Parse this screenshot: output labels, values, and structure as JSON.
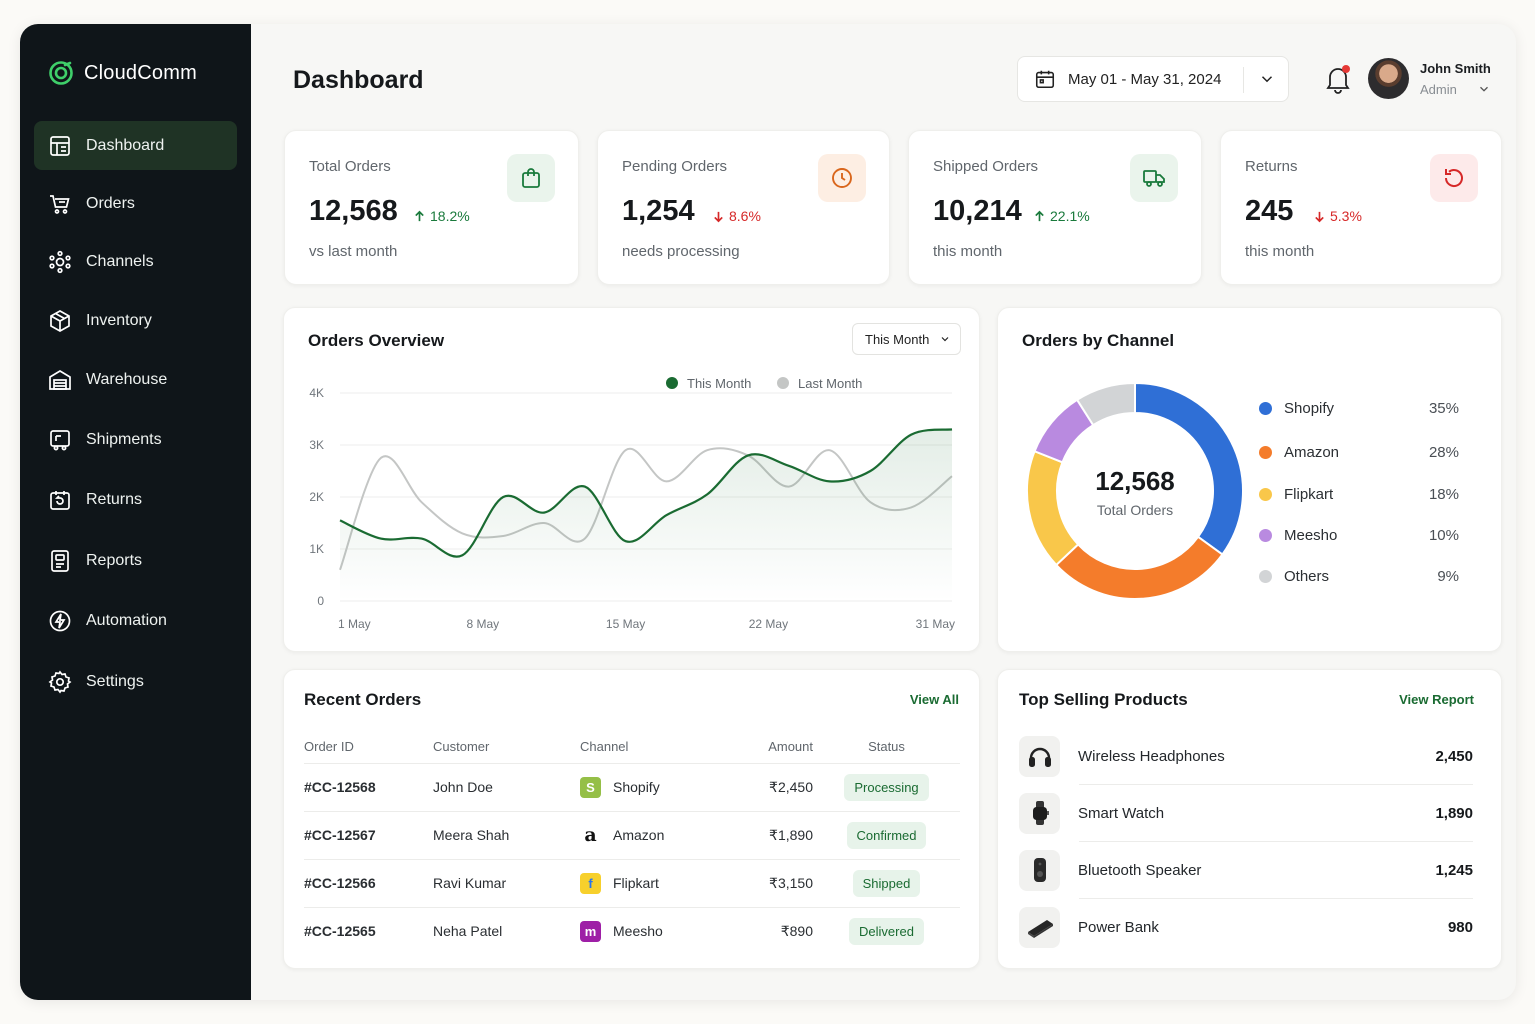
{
  "app": {
    "name": "CloudComm",
    "accent": "#1a6b32"
  },
  "sidebar": {
    "items": [
      {
        "label": "Dashboard",
        "icon": "dashboard-icon",
        "active": true
      },
      {
        "label": "Orders",
        "icon": "cart-icon"
      },
      {
        "label": "Channels",
        "icon": "channels-icon"
      },
      {
        "label": "Inventory",
        "icon": "box-icon"
      },
      {
        "label": "Warehouse",
        "icon": "warehouse-icon"
      },
      {
        "label": "Shipments",
        "icon": "shipment-icon"
      },
      {
        "label": "Returns",
        "icon": "returns-icon"
      },
      {
        "label": "Reports",
        "icon": "reports-icon"
      },
      {
        "label": "Automation",
        "icon": "automation-icon"
      },
      {
        "label": "Settings",
        "icon": "gear-icon"
      }
    ]
  },
  "header": {
    "title": "Dashboard",
    "date_range": "May 01 - May 31, 2024",
    "user": {
      "name": "John Smith",
      "role": "Admin"
    }
  },
  "stats": [
    {
      "label": "Total Orders",
      "value": "12,568",
      "change": "18.2%",
      "direction": "up",
      "note": "vs last month",
      "icon": "bag-icon",
      "icon_color": "#1a7a3c",
      "icon_bg": "#eaf4ec"
    },
    {
      "label": "Pending Orders",
      "value": "1,254",
      "change": "8.6%",
      "direction": "down",
      "note": "needs processing",
      "icon": "clock-icon",
      "icon_color": "#d9661c",
      "icon_bg": "#fdeee3"
    },
    {
      "label": "Shipped Orders",
      "value": "10,214",
      "change": "22.1%",
      "direction": "up",
      "note": "this month",
      "icon": "truck-icon",
      "icon_color": "#1a7a3c",
      "icon_bg": "#eaf4ec"
    },
    {
      "label": "Returns",
      "value": "245",
      "change": "5.3%",
      "direction": "down",
      "note": "this month",
      "icon": "return-icon",
      "icon_color": "#d62828",
      "icon_bg": "#fdeaea"
    }
  ],
  "orders_overview": {
    "title": "Orders Overview",
    "period": "This Month",
    "legend": [
      "This Month",
      "Last Month"
    ]
  },
  "chart_data": {
    "type": "line",
    "x_ticks": [
      "1 May",
      "8 May",
      "15 May",
      "22 May",
      "31 May"
    ],
    "y_ticks": [
      "0",
      "1K",
      "2K",
      "3K",
      "4K"
    ],
    "ylim": [
      0,
      4000
    ],
    "xlim": [
      1,
      31
    ],
    "series": [
      {
        "name": "This Month",
        "color": "#1a6b32",
        "x": [
          1,
          3,
          5,
          7,
          9,
          11,
          13,
          15,
          17,
          19,
          21,
          23,
          25,
          27,
          29,
          31
        ],
        "y": [
          1550,
          1200,
          1200,
          880,
          2000,
          1700,
          2200,
          1150,
          1650,
          2050,
          2800,
          2600,
          2300,
          2500,
          3200,
          3300
        ]
      },
      {
        "name": "Last Month",
        "color": "#c4c6c5",
        "x": [
          1,
          3,
          5,
          7,
          9,
          11,
          13,
          15,
          17,
          19,
          21,
          23,
          25,
          27,
          29,
          31
        ],
        "y": [
          600,
          2750,
          1900,
          1300,
          1250,
          1500,
          1200,
          2900,
          2300,
          2900,
          2800,
          2200,
          2900,
          1900,
          1800,
          2400
        ]
      }
    ]
  },
  "orders_by_channel": {
    "title": "Orders by Channel",
    "total": "12,568",
    "total_label": "Total Orders",
    "channels": [
      {
        "name": "Shopify",
        "pct": "35%",
        "value": 35,
        "color": "#2f6fd6"
      },
      {
        "name": "Amazon",
        "pct": "28%",
        "value": 28,
        "color": "#f47c2b"
      },
      {
        "name": "Flipkart",
        "pct": "18%",
        "value": 18,
        "color": "#f9c74a"
      },
      {
        "name": "Meesho",
        "pct": "10%",
        "value": 10,
        "color": "#b98ae0"
      },
      {
        "name": "Others",
        "pct": "9%",
        "value": 9,
        "color": "#d2d4d6"
      }
    ]
  },
  "recent_orders": {
    "title": "Recent Orders",
    "view_all": "View All",
    "columns": [
      "Order ID",
      "Customer",
      "Channel",
      "Amount",
      "Status"
    ],
    "rows": [
      {
        "id": "#CC-12568",
        "customer": "John Doe",
        "channel": "Shopify",
        "amount": "₹2,450",
        "status": "Processing"
      },
      {
        "id": "#CC-12567",
        "customer": "Meera Shah",
        "channel": "Amazon",
        "amount": "₹1,890",
        "status": "Confirmed"
      },
      {
        "id": "#CC-12566",
        "customer": "Ravi Kumar",
        "channel": "Flipkart",
        "amount": "₹3,150",
        "status": "Shipped"
      },
      {
        "id": "#CC-12565",
        "customer": "Neha Patel",
        "channel": "Meesho",
        "amount": "₹890",
        "status": "Delivered"
      }
    ]
  },
  "top_products": {
    "title": "Top Selling Products",
    "view_report": "View Report",
    "items": [
      {
        "name": "Wireless Headphones",
        "value": "2,450",
        "icon": "headphones-icon"
      },
      {
        "name": "Smart Watch",
        "value": "1,890",
        "icon": "watch-icon"
      },
      {
        "name": "Bluetooth Speaker",
        "value": "1,245",
        "icon": "speaker-icon"
      },
      {
        "name": "Power Bank",
        "value": "980",
        "icon": "powerbank-icon"
      }
    ]
  }
}
